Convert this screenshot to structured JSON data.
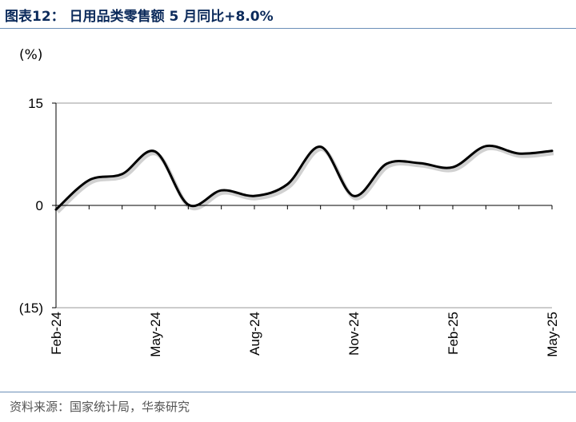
{
  "figure": {
    "title": "图表12：  日用品类零售额 5 月同比+8.0%",
    "source": "资料来源：国家统计局，华泰研究"
  },
  "chart_data": {
    "type": "line",
    "title": "",
    "xlabel": "",
    "ylabel": "(%)",
    "ylim": [
      -15,
      15
    ],
    "y_ticks": [
      "15",
      "0",
      "(15)"
    ],
    "y_tick_values": [
      15,
      0,
      -15
    ],
    "x_tick_labels": [
      "Feb-24",
      "May-24",
      "Aug-24",
      "Nov-24",
      "Feb-25",
      "May-25"
    ],
    "grid": "horizontal",
    "x": [
      "Feb-24",
      "Mar-24",
      "Apr-24",
      "May-24",
      "Jun-24",
      "Jul-24",
      "Aug-24",
      "Sep-24",
      "Oct-24",
      "Nov-24",
      "Dec-24",
      "Jan-25",
      "Feb-25",
      "Mar-25",
      "Apr-25",
      "May-25"
    ],
    "series": [
      {
        "color": "#aebfd6",
        "values": [
          -0.6,
          3.7,
          4.6,
          7.9,
          0.1,
          2.2,
          1.4,
          3.1,
          8.6,
          1.4,
          6.1,
          6.2,
          5.6,
          8.7,
          7.6,
          8.0
        ]
      }
    ]
  }
}
